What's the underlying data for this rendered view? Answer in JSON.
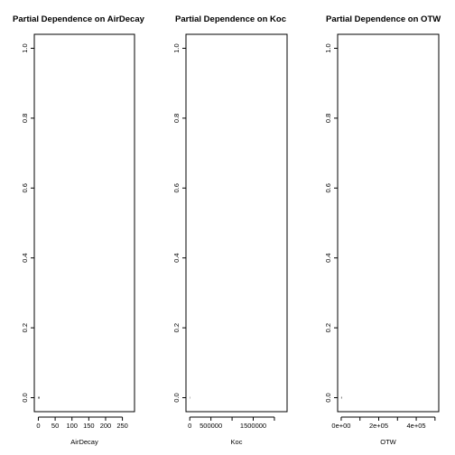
{
  "chart_data": [
    {
      "type": "line",
      "title": "Partial Dependence on AirDecay",
      "xlabel": "AirDecay",
      "ylabel": "",
      "xticks": [
        "0",
        "50",
        "100",
        "150",
        "200",
        "250"
      ],
      "xtick_values": [
        0,
        50,
        100,
        150,
        200,
        250
      ],
      "xlim": [
        -12,
        286
      ],
      "yticks": [
        "0.0",
        "0.2",
        "0.4",
        "0.6",
        "0.8",
        "1.0"
      ],
      "ytick_values": [
        0.0,
        0.2,
        0.4,
        0.6,
        0.8,
        1.0
      ],
      "ylim": [
        -0.04,
        1.04
      ],
      "grid": false,
      "series": [
        {
          "x": [
            0,
            3
          ],
          "y": [
            0,
            0
          ]
        }
      ]
    },
    {
      "type": "line",
      "title": "Partial Dependence on Koc",
      "xlabel": "Koc",
      "ylabel": "",
      "xticks": [
        "0",
        "500000",
        "1500000"
      ],
      "xtick_values": [
        0,
        500000,
        1000000,
        1500000,
        2000000
      ],
      "xtick_label_index": [
        0,
        1,
        3
      ],
      "xlim": [
        -90000,
        2300000
      ],
      "yticks": [
        "0.0",
        "0.2",
        "0.4",
        "0.6",
        "0.8",
        "1.0"
      ],
      "ytick_values": [
        0.0,
        0.2,
        0.4,
        0.6,
        0.8,
        1.0
      ],
      "ylim": [
        -0.04,
        1.04
      ],
      "grid": false,
      "series": [
        {
          "x": [
            0,
            6000
          ],
          "y": [
            0,
            0
          ]
        }
      ]
    },
    {
      "type": "line",
      "title": "Partial Dependence on OTW",
      "xlabel": "OTW",
      "ylabel": "",
      "xticks": [
        "0e+00",
        "2e+05",
        "4e+05"
      ],
      "xtick_values": [
        0,
        100000,
        200000,
        300000,
        400000,
        500000
      ],
      "xtick_label_index": [
        0,
        2,
        4
      ],
      "xlim": [
        -19000,
        520000
      ],
      "yticks": [
        "0.0",
        "0.2",
        "0.4",
        "0.6",
        "0.8",
        "1.0"
      ],
      "ytick_values": [
        0.0,
        0.2,
        0.4,
        0.6,
        0.8,
        1.0
      ],
      "ylim": [
        -0.04,
        1.04
      ],
      "grid": false,
      "series": [
        {
          "x": [
            0,
            2500
          ],
          "y": [
            0,
            0
          ]
        }
      ]
    }
  ]
}
